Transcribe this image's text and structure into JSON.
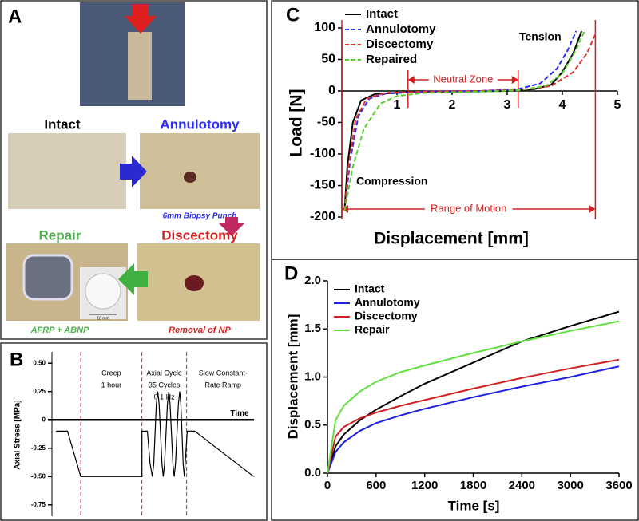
{
  "panel_a": {
    "panel": "A",
    "intact": "Intact",
    "annulotomy": "Annulotomy",
    "discectomy": "Discectomy",
    "repair": "Repair",
    "biopsy_note": "6mm Biopsy Punch",
    "repair_note": "AFRP + ABNP",
    "discectomy_note": "Removal of NP",
    "scale_bar": "10 mm"
  },
  "chart_data": [
    {
      "type": "line",
      "panel": "C",
      "x_label": "Displacement [mm]",
      "y_label": "Load [N]",
      "xlim": [
        0,
        5
      ],
      "xticks": [
        1,
        2,
        3,
        4,
        5
      ],
      "ylim": [
        -200,
        100
      ],
      "yticks": [
        -200,
        -150,
        -100,
        -50,
        0,
        50,
        100
      ],
      "annotations": {
        "tension": "Tension",
        "compression": "Compression",
        "neutral_zone": "Neutral Zone",
        "range_of_motion": "Range of Motion"
      },
      "neutral_zone": [
        1.2,
        3.2
      ],
      "range_of_motion": [
        0,
        4.6
      ],
      "series": [
        {
          "name": "Intact",
          "color": "#000000",
          "dashed": false,
          "x": [
            0.05,
            0.1,
            0.2,
            0.35,
            0.6,
            1.2,
            2,
            3,
            3.5,
            3.8,
            4.0,
            4.2,
            4.35
          ],
          "values": [
            -190,
            -120,
            -50,
            -15,
            -5,
            -2,
            -1,
            0,
            3,
            10,
            30,
            60,
            95
          ]
        },
        {
          "name": "Annulotomy",
          "color": "#2a2aff",
          "dashed": true,
          "x": [
            0.05,
            0.15,
            0.3,
            0.5,
            0.8,
            1.5,
            2.5,
            3.2,
            3.6,
            3.9,
            4.1,
            4.25
          ],
          "values": [
            -190,
            -110,
            -40,
            -12,
            -4,
            -1,
            0,
            3,
            12,
            35,
            65,
            95
          ]
        },
        {
          "name": "Discectomy",
          "color": "#e03030",
          "dashed": true,
          "x": [
            0.05,
            0.12,
            0.25,
            0.45,
            0.8,
            1.5,
            2.5,
            3.3,
            3.8,
            4.2,
            4.45,
            4.6
          ],
          "values": [
            -190,
            -120,
            -45,
            -12,
            -3,
            -1,
            0,
            2,
            8,
            30,
            60,
            90
          ]
        },
        {
          "name": "Repaired",
          "color": "#5ad030",
          "dashed": true,
          "x": [
            0.05,
            0.2,
            0.4,
            0.7,
            1.0,
            1.5,
            2.5,
            3.2,
            3.7,
            4.0,
            4.25,
            4.4
          ],
          "values": [
            -190,
            -120,
            -60,
            -20,
            -8,
            -3,
            -1,
            1,
            8,
            28,
            65,
            95
          ]
        }
      ]
    },
    {
      "type": "line",
      "panel": "D",
      "x_label": "Time [s]",
      "y_label": "Displacement [mm]",
      "xlim": [
        0,
        3600
      ],
      "xticks": [
        0,
        600,
        1200,
        1800,
        2400,
        3000,
        3600
      ],
      "ylim": [
        0,
        2.0
      ],
      "yticks": [
        {
          "value": 0,
          "label": "0.0"
        },
        0.5,
        {
          "value": 1,
          "label": "1.0"
        },
        1.5,
        {
          "value": 2,
          "label": "2.0"
        }
      ],
      "x": [
        0,
        100,
        200,
        400,
        600,
        900,
        1200,
        1800,
        2400,
        3000,
        3600
      ],
      "series": [
        {
          "name": "Intact",
          "color": "#000000",
          "values": [
            0,
            0.28,
            0.4,
            0.55,
            0.66,
            0.8,
            0.93,
            1.15,
            1.37,
            1.53,
            1.68
          ]
        },
        {
          "name": "Annulotomy",
          "color": "#2020e0",
          "values": [
            0,
            0.22,
            0.32,
            0.44,
            0.52,
            0.6,
            0.67,
            0.79,
            0.9,
            1.0,
            1.11
          ]
        },
        {
          "name": "Discectomy",
          "color": "#d02020",
          "values": [
            0,
            0.38,
            0.48,
            0.57,
            0.63,
            0.7,
            0.76,
            0.88,
            0.99,
            1.09,
            1.18
          ]
        },
        {
          "name": "Repair",
          "color": "#60e040",
          "values": [
            0,
            0.55,
            0.7,
            0.85,
            0.95,
            1.05,
            1.12,
            1.25,
            1.37,
            1.48,
            1.58
          ]
        }
      ]
    },
    {
      "type": "line",
      "panel": "B",
      "x_label": "Time",
      "y_label": "Axial Stress [MPa]",
      "color": "#000000",
      "xlim": [
        0,
        72
      ],
      "ylim": [
        -0.85,
        0.6
      ],
      "yticks": [
        {
          "value": 0.5,
          "label": "0.50"
        },
        0.25,
        0,
        -0.25,
        {
          "value": -0.5,
          "label": "-0.50"
        },
        -0.75
      ],
      "phase_dividers": [
        10,
        31.2,
        46.7
      ],
      "phases": [
        [
          "Creep",
          "1 hour"
        ],
        [
          "Axial Cycle",
          "35 Cycles",
          "0.1 Hz"
        ],
        [
          "Slow Constant-",
          "Rate Ramp"
        ]
      ],
      "x": [
        1.4,
        5.4,
        10,
        31.2,
        31.2,
        33.1,
        34,
        34.8,
        35.3,
        35.75,
        36.2,
        36.7,
        37.15,
        37.65,
        38.15,
        38.6,
        39.05,
        39.55,
        40.05,
        40.5,
        40.95,
        41.45,
        41.95,
        42.4,
        42.85,
        43.35,
        43.85,
        44.3,
        44.7,
        45.1,
        45.5,
        45.9,
        46.4,
        46.9,
        49.5,
        70
      ],
      "values": [
        -0.1,
        -0.1,
        -0.5,
        -0.5,
        -0.1,
        -0.1,
        -0.38,
        -0.5,
        -0.39,
        -0.125,
        0.14,
        0.25,
        0.14,
        -0.125,
        -0.39,
        -0.5,
        -0.39,
        -0.125,
        0.14,
        0.25,
        0.14,
        -0.125,
        -0.39,
        -0.5,
        -0.39,
        -0.125,
        0.14,
        0.25,
        0.14,
        -0.125,
        -0.39,
        -0.5,
        -0.3,
        -0.1,
        -0.1,
        -0.5
      ]
    }
  ]
}
